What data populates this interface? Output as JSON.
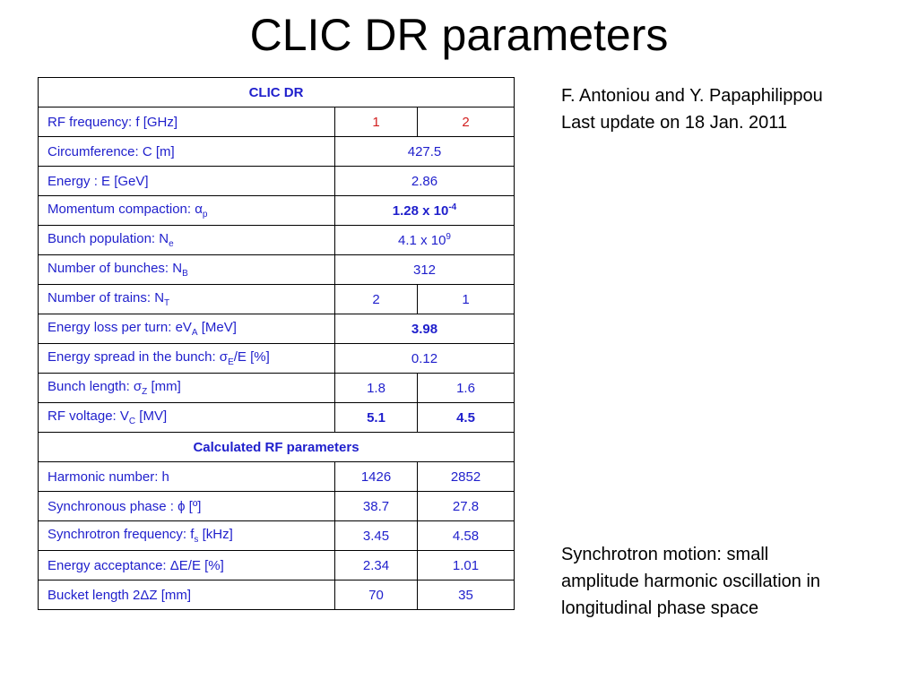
{
  "title": "CLIC DR parameters",
  "authors": "F. Antoniou and Y. Papaphilippou",
  "last_update": "Last update on 18 Jan. 2011",
  "note_lines": [
    "Synchrotron motion: small",
    "amplitude harmonic oscillation in",
    "longitudinal phase space"
  ],
  "table": {
    "header": "CLIC DR",
    "rows": [
      {
        "label": "RF frequency: f [GHz]",
        "v1": "1",
        "v2": "2"
      },
      {
        "label": "Circumference: C [m]",
        "v": "427.5"
      },
      {
        "label": "Energy : E [GeV]",
        "v": "2.86"
      },
      {
        "label_pre": "Momentum compaction: α",
        "label_sub": "p",
        "v_pre": "1.28 x 10",
        "v_sup": "-4"
      },
      {
        "label_pre": "Bunch population: N",
        "label_sub": "e",
        "v_pre": "4.1 x 10",
        "v_sup": "9"
      },
      {
        "label_pre": "Number of bunches: N",
        "label_sub": "B",
        "v": "312"
      },
      {
        "label_pre": "Number of trains: N",
        "label_sub": "T",
        "v1": "2",
        "v2": "1"
      },
      {
        "label_pre": "Energy loss per turn: eV",
        "label_sub": "A",
        "label_post": " [MeV]",
        "v": "3.98"
      },
      {
        "label_pre": "Energy spread in the bunch: σ",
        "label_sub": "E",
        "label_post": "/E [%]",
        "v": "0.12"
      },
      {
        "label_pre": "Bunch length: σ",
        "label_sub": "Z",
        "label_post": " [mm]",
        "v1": "1.8",
        "v2": "1.6"
      },
      {
        "label_pre": "RF voltage: V",
        "label_sub": "C",
        "label_post": " [MV]",
        "v1": "5.1",
        "v2": "4.5"
      }
    ],
    "section2": "Calculated RF parameters",
    "rows2": [
      {
        "label": "Harmonic number: h",
        "v1": "1426",
        "v2": "2852"
      },
      {
        "label": "Synchronous phase : ϕ [º]",
        "v1": "38.7",
        "v2": "27.8"
      },
      {
        "label_pre": "Synchrotron frequency: f",
        "label_sub": "s",
        "label_post": " [kHz]",
        "v1": "3.45",
        "v2": "4.58"
      },
      {
        "label": "Energy acceptance: ΔE/E [%]",
        "v1": "2.34",
        "v2": "1.01"
      },
      {
        "label": "Bucket length 2ΔZ [mm]",
        "v1": "70",
        "v2": "35"
      }
    ]
  }
}
